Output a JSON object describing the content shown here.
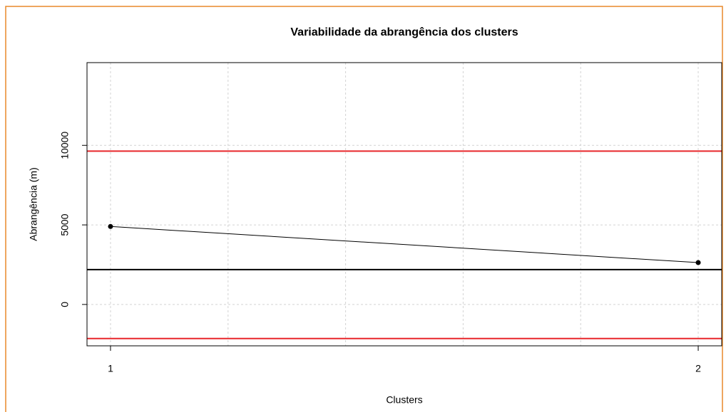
{
  "chart_data": {
    "type": "line",
    "title": "Variabilidade da abrangência dos clusters",
    "x_label": "Clusters",
    "y_label": "Abrangência (m)",
    "x": [
      1,
      2
    ],
    "series": [
      {
        "name": "Abrangência",
        "color": "#000000",
        "values": [
          4900,
          2630
        ]
      }
    ],
    "hlines": [
      {
        "value": 9640,
        "color": "#e8262a"
      },
      {
        "value": 2190,
        "color": "#000000"
      },
      {
        "value": -2140,
        "color": "#e8262a"
      }
    ],
    "xlim": [
      0.96,
      2.04
    ],
    "ylim": [
      -2600,
      15200
    ],
    "xticks": [
      1,
      2
    ],
    "yticks": [
      0,
      5000,
      10000
    ],
    "xgrid": [
      1,
      1.2,
      1.4,
      1.6,
      1.8,
      2
    ],
    "grid": true
  }
}
